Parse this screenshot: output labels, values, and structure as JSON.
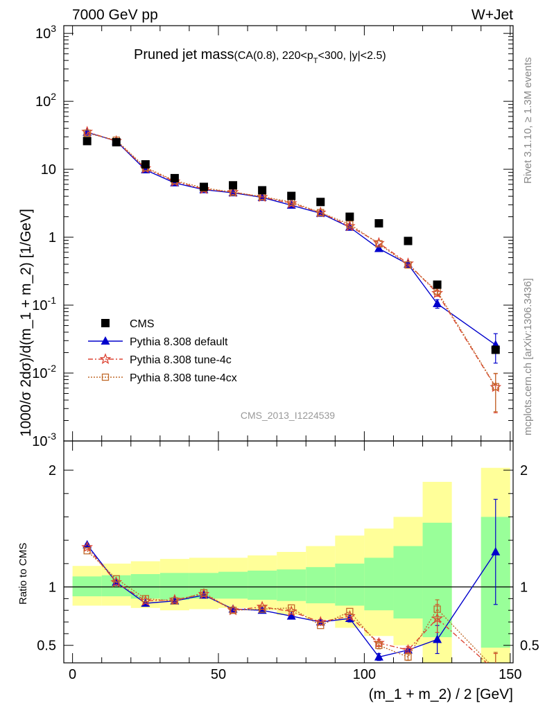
{
  "header": {
    "left": "7000 GeV pp",
    "right": "W+Jet"
  },
  "plot_title": {
    "main": "Pruned jet mass",
    "cuts_prefix": "(CA(0.8), 220<p",
    "cuts_sub": "T",
    "cuts_suffix": "<300, |y|<2.5)"
  },
  "side_labels": {
    "rivet": "Rivet 3.1.10, ≥ 1.3M events",
    "mcplots": "mcplots.cern.ch [arXiv:1306.3436]"
  },
  "watermark": "CMS_2013_I1224539",
  "axis_labels": {
    "x": "(m_1 + m_2) / 2 [GeV]",
    "y_top": "1000/σ 2dσ)/d(m_1 + m_2) [1/GeV]",
    "y_ratio": "Ratio to CMS"
  },
  "legend": [
    {
      "name": "CMS"
    },
    {
      "name": "Pythia 8.308 default"
    },
    {
      "name": "Pythia 8.308 tune-4c"
    },
    {
      "name": "Pythia 8.308 tune-4cx"
    }
  ],
  "colors": {
    "cms": "#000000",
    "default": "#0000cc",
    "tune4c": "#dd4433",
    "tune4cx": "#c06a2a",
    "band_inner": "#99ff99",
    "band_outer": "#ffff99"
  },
  "chart_data": [
    {
      "type": "scatter",
      "panel": "main",
      "x_ticks": [
        "0",
        "50",
        "100",
        "150"
      ],
      "y_scale": "log",
      "ylim": [
        0.001,
        1300
      ],
      "xlim": [
        -3,
        151
      ],
      "y_ticks": [
        {
          "base": "10",
          "exp": "-3"
        },
        {
          "base": "10",
          "exp": "-2"
        },
        {
          "base": "10",
          "exp": "-1"
        },
        {
          "base": "1",
          "exp": ""
        },
        {
          "base": "10",
          "exp": ""
        },
        {
          "base": "10",
          "exp": "2"
        },
        {
          "base": "10",
          "exp": "3"
        }
      ],
      "x": [
        5,
        15,
        25,
        35,
        45,
        55,
        65,
        75,
        85,
        95,
        105,
        115,
        125,
        145
      ],
      "series": [
        {
          "name": "CMS",
          "marker": "square",
          "values": [
            26,
            25,
            11.8,
            7.4,
            5.5,
            5.8,
            4.9,
            4.05,
            3.3,
            2.0,
            1.6,
            0.88,
            0.2,
            0.022
          ]
        },
        {
          "name": "Pythia 8.308 default",
          "marker": "triangle",
          "values": [
            35,
            26,
            9.8,
            6.3,
            5.0,
            4.5,
            3.85,
            2.95,
            2.25,
            1.4,
            0.68,
            0.4,
            0.105,
            0.026
          ],
          "errors": [
            0,
            0,
            0,
            0,
            0,
            0,
            0,
            0,
            0,
            0,
            0,
            0,
            0.015,
            0.012
          ]
        },
        {
          "name": "Pythia 8.308 tune-4c",
          "marker": "star",
          "values": [
            35.5,
            26,
            10.3,
            6.6,
            5.1,
            4.6,
            3.9,
            3.15,
            2.3,
            1.45,
            0.82,
            0.41,
            0.15,
            0.0062
          ],
          "errors": [
            0,
            0,
            0,
            0,
            0,
            0,
            0,
            0,
            0,
            0,
            0,
            0,
            0.015,
            0.0036
          ]
        },
        {
          "name": "Pythia 8.308 tune-4cx",
          "marker": "open-square",
          "values": [
            34,
            26.8,
            10.6,
            6.8,
            5.3,
            4.6,
            3.95,
            3.3,
            2.3,
            1.55,
            0.8,
            0.39,
            0.16,
            0.0063
          ],
          "errors": [
            0,
            0,
            0,
            0,
            0,
            0,
            0,
            0,
            0,
            0,
            0,
            0,
            0.015,
            0.0036
          ]
        }
      ]
    },
    {
      "type": "line",
      "panel": "ratio",
      "ylim": [
        0.35,
        2.25
      ],
      "xlim": [
        -3,
        151
      ],
      "y_ticks": [
        "0.5",
        "1",
        "2"
      ],
      "y_ticks_minor": [
        0.6,
        0.7,
        0.8,
        0.9,
        1.2,
        1.4,
        1.6,
        1.8
      ],
      "x": [
        5,
        15,
        25,
        35,
        45,
        55,
        65,
        75,
        85,
        95,
        105,
        115,
        125,
        145
      ],
      "bands": {
        "edges": [
          0,
          10,
          20,
          30,
          40,
          50,
          60,
          70,
          80,
          90,
          100,
          110,
          120,
          130,
          140,
          150
        ],
        "inner_low": [
          0.92,
          0.92,
          0.9,
          0.89,
          0.9,
          0.9,
          0.89,
          0.88,
          0.86,
          0.84,
          0.8,
          0.73,
          0.57,
          null,
          0.48
        ],
        "inner_high": [
          1.09,
          1.1,
          1.11,
          1.12,
          1.12,
          1.13,
          1.14,
          1.15,
          1.17,
          1.2,
          1.25,
          1.35,
          1.55,
          null,
          1.6
        ],
        "outer_low": [
          0.84,
          0.84,
          0.82,
          0.8,
          0.81,
          0.82,
          0.8,
          0.76,
          0.72,
          0.65,
          0.58,
          0.5,
          0.35,
          null,
          0.35
        ],
        "outer_high": [
          1.18,
          1.2,
          1.22,
          1.24,
          1.25,
          1.25,
          1.27,
          1.3,
          1.35,
          1.44,
          1.5,
          1.6,
          1.9,
          null,
          2.02
        ]
      },
      "series": [
        {
          "name": "Pythia 8.308 default",
          "values": [
            1.36,
            1.04,
            0.86,
            0.88,
            0.93,
            0.81,
            0.8,
            0.75,
            0.7,
            0.73,
            0.4,
            0.46,
            0.55,
            1.3
          ],
          "errors": [
            0.01,
            0.01,
            0.01,
            0.01,
            0.01,
            0.01,
            0.01,
            0.015,
            0.02,
            0.03,
            0.03,
            0.03,
            0.12,
            0.45
          ]
        },
        {
          "name": "Pythia 8.308 tune-4c",
          "values": [
            1.34,
            1.04,
            0.88,
            0.89,
            0.94,
            0.8,
            0.83,
            0.79,
            0.7,
            0.75,
            0.52,
            0.46,
            0.73,
            0.28
          ],
          "errors": [
            0,
            0,
            0,
            0,
            0,
            0,
            0,
            0,
            0,
            0,
            0.03,
            0.03,
            0.12,
            0.15
          ]
        },
        {
          "name": "Pythia 8.308 tune-4cx",
          "values": [
            1.31,
            1.07,
            0.9,
            0.88,
            0.95,
            0.8,
            0.81,
            0.82,
            0.67,
            0.79,
            0.5,
            0.4,
            0.81,
            0.29
          ],
          "errors": [
            0,
            0,
            0,
            0,
            0,
            0,
            0,
            0,
            0,
            0,
            0.03,
            0.03,
            0.08,
            0.15
          ]
        }
      ]
    }
  ]
}
